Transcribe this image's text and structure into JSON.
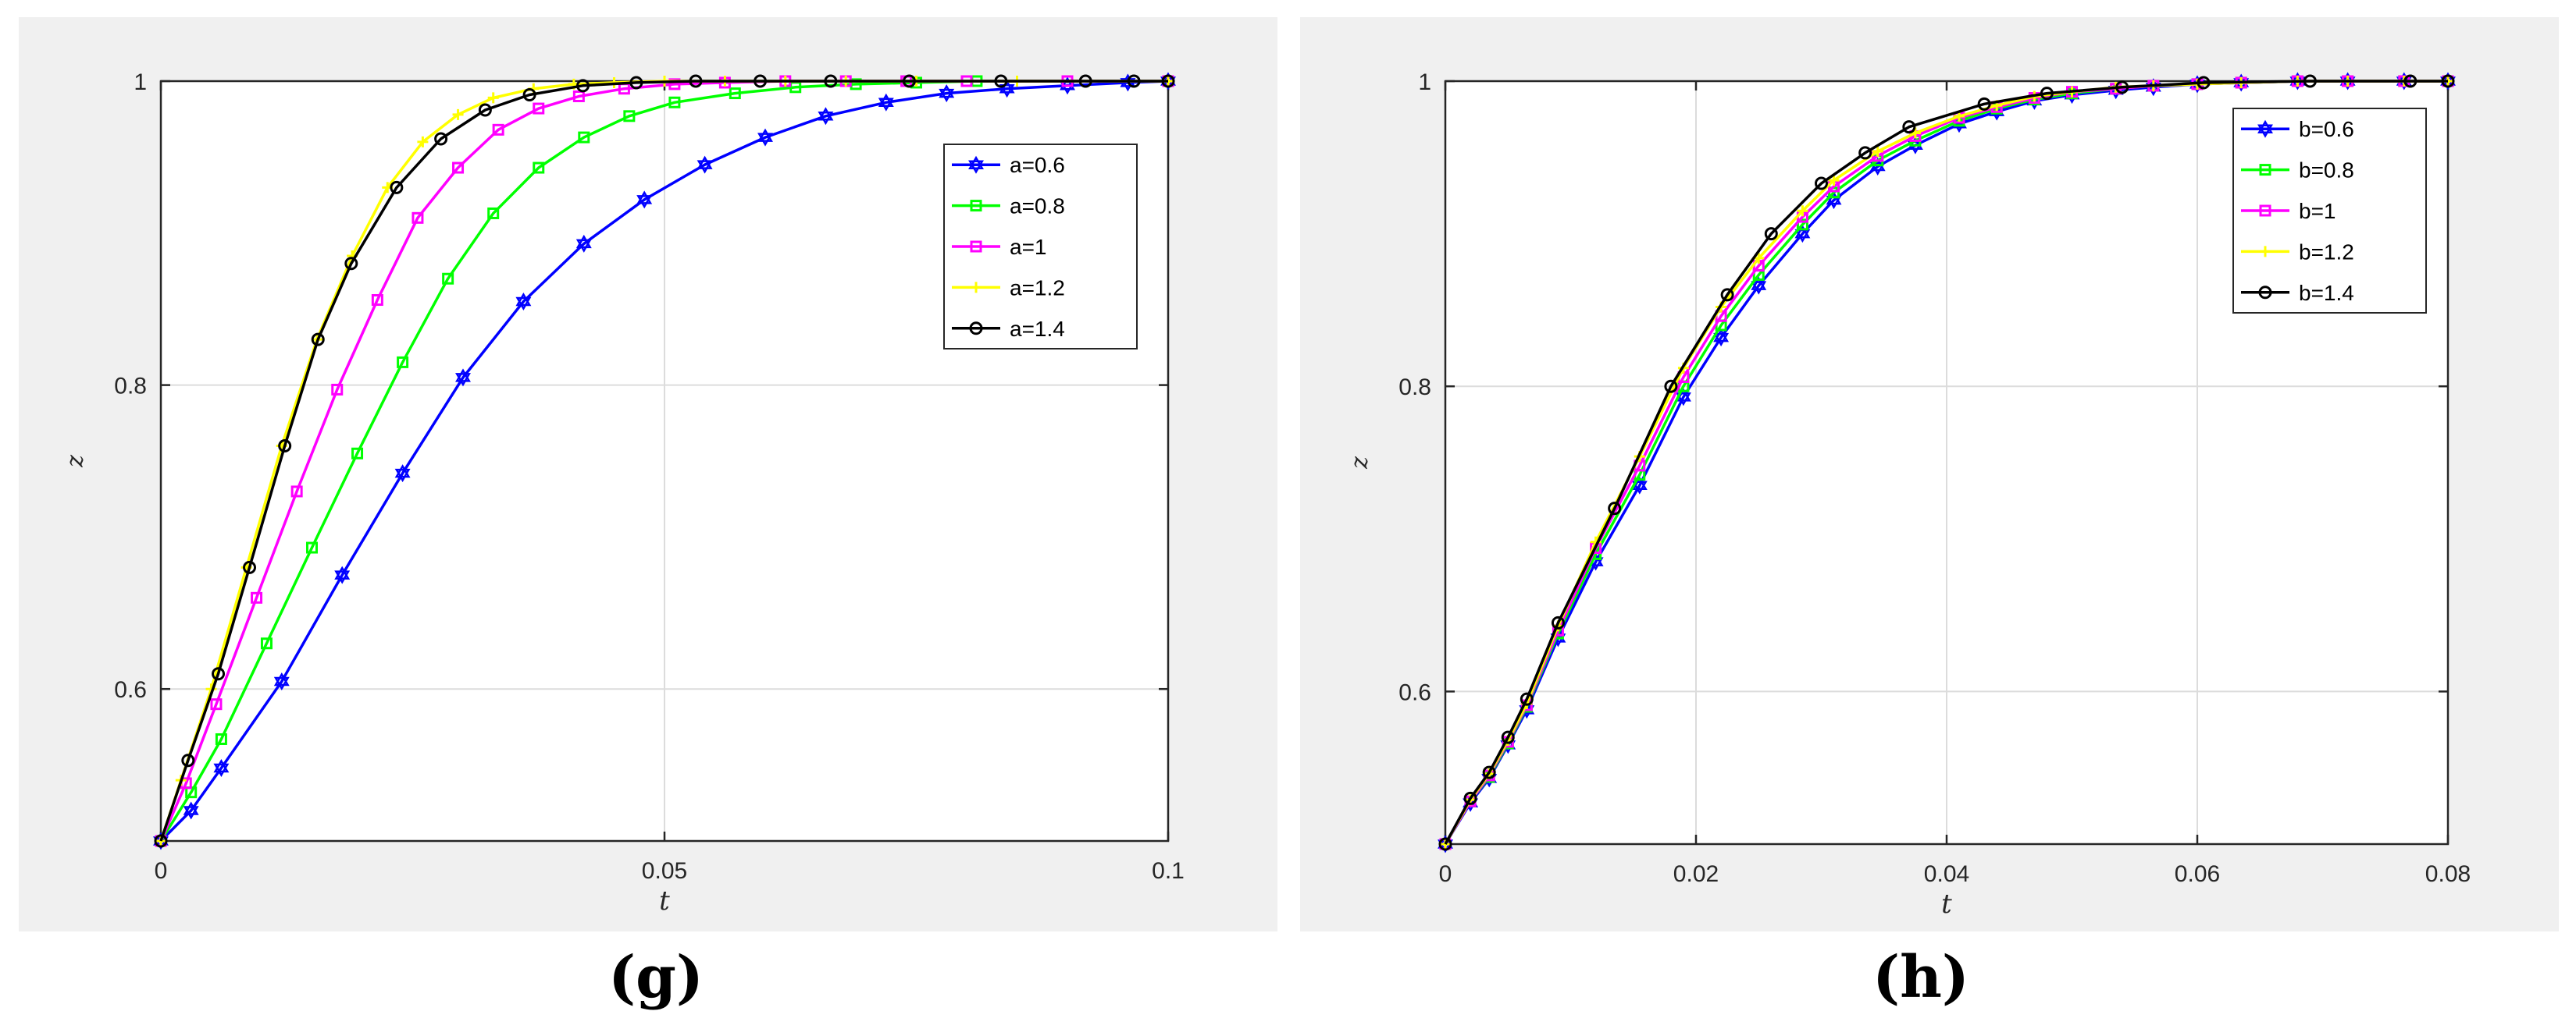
{
  "captions": {
    "g": "(g)",
    "h": "(h)"
  },
  "chart_data": [
    {
      "type": "line",
      "panel": "g",
      "xlabel": "t",
      "ylabel": "z",
      "xlim": [
        0,
        0.1
      ],
      "ylim": [
        0.5,
        1.0
      ],
      "xticks": [
        "0",
        "0.05",
        "0.1"
      ],
      "yticks": [
        "0.6",
        "0.8",
        "1"
      ],
      "grid": true,
      "legend_position": "top-right",
      "series": [
        {
          "name": "a=0.6",
          "color": "#0000ff",
          "marker": "hexagram",
          "x": [
            0,
            0.003,
            0.006,
            0.012,
            0.018,
            0.024,
            0.03,
            0.036,
            0.042,
            0.048,
            0.054,
            0.06,
            0.066,
            0.072,
            0.078,
            0.084,
            0.09,
            0.096,
            0.1
          ],
          "y": [
            0.5,
            0.52,
            0.548,
            0.605,
            0.675,
            0.742,
            0.805,
            0.855,
            0.893,
            0.922,
            0.945,
            0.963,
            0.977,
            0.986,
            0.992,
            0.995,
            0.997,
            0.999,
            1.0
          ]
        },
        {
          "name": "a=0.8",
          "color": "#00ff00",
          "marker": "square",
          "x": [
            0,
            0.003,
            0.006,
            0.0105,
            0.015,
            0.0195,
            0.024,
            0.0285,
            0.033,
            0.0375,
            0.042,
            0.0465,
            0.051,
            0.057,
            0.063,
            0.069,
            0.075,
            0.081,
            0.09,
            0.1
          ],
          "y": [
            0.5,
            0.532,
            0.567,
            0.63,
            0.693,
            0.755,
            0.815,
            0.87,
            0.913,
            0.943,
            0.963,
            0.977,
            0.986,
            0.992,
            0.996,
            0.998,
            0.999,
            1.0,
            1.0,
            1.0
          ]
        },
        {
          "name": "a=1",
          "color": "#ff00ff",
          "marker": "square",
          "x": [
            0,
            0.0025,
            0.0055,
            0.0095,
            0.0135,
            0.0175,
            0.0215,
            0.0255,
            0.0295,
            0.0335,
            0.0375,
            0.0415,
            0.046,
            0.051,
            0.056,
            0.062,
            0.068,
            0.074,
            0.08,
            0.09,
            0.1
          ],
          "y": [
            0.5,
            0.538,
            0.59,
            0.66,
            0.73,
            0.797,
            0.856,
            0.91,
            0.943,
            0.968,
            0.982,
            0.99,
            0.995,
            0.998,
            0.999,
            1.0,
            1.0,
            1.0,
            1.0,
            1.0,
            1.0
          ]
        },
        {
          "name": "a=1.2",
          "color": "#ffff00",
          "marker": "plus",
          "x": [
            0,
            0.002,
            0.005,
            0.0085,
            0.012,
            0.0155,
            0.019,
            0.0225,
            0.026,
            0.0295,
            0.033,
            0.037,
            0.041,
            0.045,
            0.05,
            0.056,
            0.062,
            0.068,
            0.075,
            0.085,
            0.1
          ],
          "y": [
            0.5,
            0.54,
            0.6,
            0.68,
            0.76,
            0.83,
            0.885,
            0.93,
            0.96,
            0.978,
            0.989,
            0.995,
            0.998,
            0.999,
            1.0,
            1.0,
            1.0,
            1.0,
            1.0,
            1.0,
            1.0
          ]
        },
        {
          "name": "a=1.4",
          "color": "#000000",
          "marker": "circle",
          "x": [
            0,
            0.0027,
            0.0057,
            0.0088,
            0.0123,
            0.0156,
            0.0189,
            0.0234,
            0.0278,
            0.0322,
            0.0366,
            0.0419,
            0.0472,
            0.0531,
            0.0595,
            0.0665,
            0.0743,
            0.0834,
            0.0918,
            0.0966,
            0.1
          ],
          "y": [
            0.5,
            0.553,
            0.61,
            0.68,
            0.76,
            0.83,
            0.88,
            0.93,
            0.962,
            0.981,
            0.991,
            0.997,
            0.999,
            1.0,
            1.0,
            1.0,
            1.0,
            1.0,
            1.0,
            1.0,
            1.0
          ]
        }
      ]
    },
    {
      "type": "line",
      "panel": "h",
      "xlabel": "t",
      "ylabel": "z",
      "xlim": [
        0,
        0.08
      ],
      "ylim": [
        0.5,
        1.0
      ],
      "xticks": [
        "0",
        "0.02",
        "0.04",
        "0.06",
        "0.08"
      ],
      "yticks": [
        "0.6",
        "0.8",
        "1"
      ],
      "grid": true,
      "legend_position": "top-right",
      "series": [
        {
          "name": "b=0.6",
          "color": "#0000ff",
          "marker": "hexagram",
          "x": [
            0,
            0.002,
            0.0035,
            0.005,
            0.0065,
            0.009,
            0.012,
            0.0155,
            0.019,
            0.022,
            0.025,
            0.0285,
            0.031,
            0.0345,
            0.0375,
            0.041,
            0.044,
            0.047,
            0.05,
            0.0535,
            0.0565,
            0.06,
            0.0635,
            0.068,
            0.072,
            0.0765,
            0.08
          ],
          "y": [
            0.5,
            0.527,
            0.543,
            0.565,
            0.588,
            0.635,
            0.685,
            0.735,
            0.793,
            0.832,
            0.866,
            0.9,
            0.922,
            0.944,
            0.958,
            0.972,
            0.98,
            0.987,
            0.991,
            0.994,
            0.996,
            0.998,
            0.999,
            1.0,
            1.0,
            1.0,
            1.0
          ]
        },
        {
          "name": "b=0.8",
          "color": "#00ff00",
          "marker": "square",
          "x": [
            0,
            0.002,
            0.0035,
            0.005,
            0.0065,
            0.009,
            0.012,
            0.0155,
            0.019,
            0.022,
            0.025,
            0.0285,
            0.031,
            0.0345,
            0.0375,
            0.041,
            0.044,
            0.047,
            0.05,
            0.0535,
            0.0565,
            0.06,
            0.0635,
            0.068,
            0.072,
            0.0765,
            0.08
          ],
          "y": [
            0.5,
            0.528,
            0.544,
            0.566,
            0.59,
            0.638,
            0.69,
            0.742,
            0.8,
            0.84,
            0.873,
            0.906,
            0.927,
            0.948,
            0.961,
            0.974,
            0.982,
            0.988,
            0.992,
            0.995,
            0.997,
            0.998,
            0.999,
            1.0,
            1.0,
            1.0,
            1.0
          ]
        },
        {
          "name": "b=1",
          "color": "#ff00ff",
          "marker": "square",
          "x": [
            0,
            0.002,
            0.0035,
            0.005,
            0.0065,
            0.009,
            0.012,
            0.0155,
            0.019,
            0.022,
            0.025,
            0.0285,
            0.031,
            0.0345,
            0.0375,
            0.041,
            0.044,
            0.047,
            0.05,
            0.0535,
            0.0565,
            0.06,
            0.0635,
            0.068,
            0.072,
            0.0765,
            0.08
          ],
          "y": [
            0.5,
            0.528,
            0.545,
            0.567,
            0.591,
            0.64,
            0.694,
            0.748,
            0.806,
            0.846,
            0.879,
            0.911,
            0.931,
            0.951,
            0.964,
            0.976,
            0.983,
            0.989,
            0.993,
            0.995,
            0.997,
            0.998,
            0.999,
            1.0,
            1.0,
            1.0,
            1.0
          ]
        },
        {
          "name": "b=1.2",
          "color": "#ffff00",
          "marker": "plus",
          "x": [
            0,
            0.002,
            0.0035,
            0.005,
            0.0065,
            0.009,
            0.012,
            0.0155,
            0.019,
            0.022,
            0.025,
            0.0285,
            0.031,
            0.0345,
            0.0375,
            0.041,
            0.044,
            0.047,
            0.05,
            0.0535,
            0.0565,
            0.06,
            0.0635,
            0.068,
            0.072,
            0.0765,
            0.08
          ],
          "y": [
            0.5,
            0.529,
            0.546,
            0.568,
            0.592,
            0.643,
            0.698,
            0.754,
            0.812,
            0.852,
            0.884,
            0.915,
            0.935,
            0.954,
            0.966,
            0.977,
            0.984,
            0.99,
            0.993,
            0.996,
            0.997,
            0.998,
            0.999,
            1.0,
            1.0,
            1.0,
            1.0
          ]
        },
        {
          "name": "b=1.4",
          "color": "#000000",
          "marker": "circle",
          "x": [
            0,
            0.002,
            0.0035,
            0.005,
            0.0065,
            0.009,
            0.0135,
            0.018,
            0.0225,
            0.026,
            0.03,
            0.0335,
            0.037,
            0.043,
            0.048,
            0.054,
            0.0605,
            0.069,
            0.077,
            0.08
          ],
          "y": [
            0.5,
            0.53,
            0.547,
            0.57,
            0.595,
            0.645,
            0.72,
            0.8,
            0.86,
            0.9,
            0.933,
            0.953,
            0.97,
            0.985,
            0.992,
            0.996,
            0.999,
            1.0,
            1.0,
            1.0
          ]
        }
      ]
    }
  ]
}
